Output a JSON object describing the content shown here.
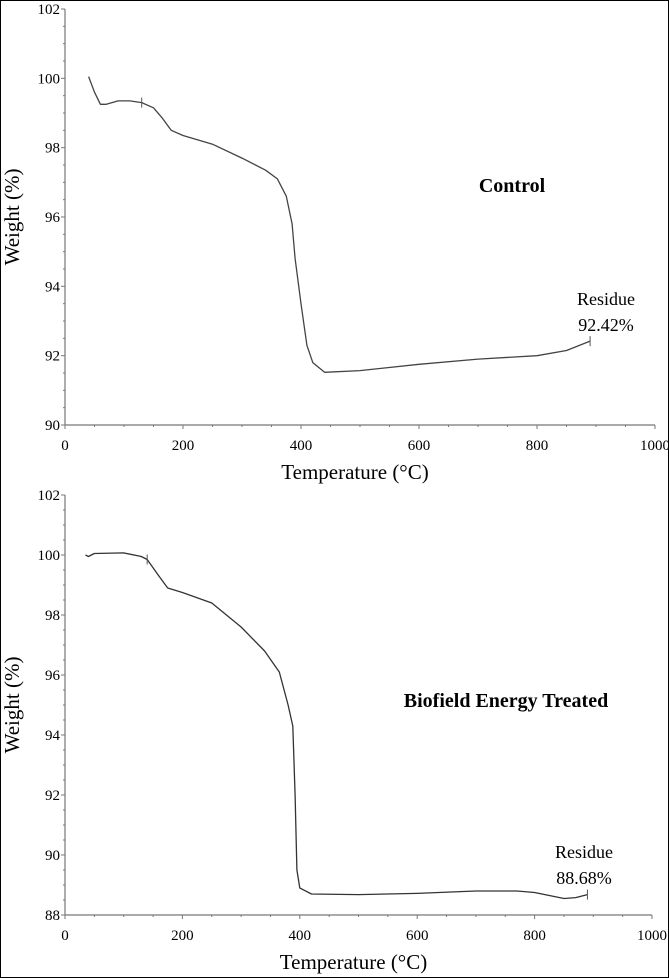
{
  "chart_data": [
    {
      "type": "line",
      "title": "Control",
      "xlabel": "Temperature (°C)",
      "ylabel": "Weight (%)",
      "xlim": [
        0,
        1000
      ],
      "ylim": [
        90,
        102
      ],
      "xticks": [
        0,
        200,
        400,
        600,
        800,
        1000
      ],
      "yticks": [
        90,
        92,
        94,
        96,
        98,
        100,
        102
      ],
      "grid": false,
      "line_color": "#444444",
      "annotation": {
        "line1": "Residue",
        "line2": "92.42%",
        "x": 890,
        "y": 92.42
      },
      "step_marker": {
        "x": 130,
        "y": 99.3
      },
      "x": [
        40,
        50,
        60,
        70,
        90,
        110,
        130,
        150,
        165,
        180,
        200,
        250,
        300,
        340,
        360,
        375,
        385,
        390,
        400,
        410,
        420,
        440,
        500,
        600,
        700,
        800,
        850,
        890
      ],
      "y": [
        100.05,
        99.6,
        99.25,
        99.25,
        99.35,
        99.35,
        99.3,
        99.15,
        98.85,
        98.5,
        98.35,
        98.1,
        97.7,
        97.35,
        97.1,
        96.6,
        95.8,
        94.8,
        93.5,
        92.3,
        91.8,
        91.52,
        91.57,
        91.75,
        91.9,
        92.0,
        92.15,
        92.42
      ]
    },
    {
      "type": "line",
      "title": "Biofield Energy Treated",
      "xlabel": "Temperature (°C)",
      "ylabel": "Weight (%)",
      "xlim": [
        0,
        1000
      ],
      "ylim": [
        88,
        102
      ],
      "xticks": [
        0,
        200,
        400,
        600,
        800,
        1000
      ],
      "yticks": [
        88,
        90,
        92,
        94,
        96,
        98,
        100,
        102
      ],
      "grid": false,
      "line_color": "#333333",
      "annotation": {
        "line1": "Residue",
        "line2": "88.68%",
        "x": 890,
        "y": 88.68
      },
      "step_marker": {
        "x": 140,
        "y": 99.85
      },
      "x": [
        35,
        40,
        50,
        100,
        130,
        140,
        160,
        175,
        200,
        250,
        300,
        340,
        365,
        380,
        388,
        392,
        395,
        400,
        420,
        500,
        600,
        700,
        770,
        800,
        850,
        870,
        890
      ],
      "y": [
        100.0,
        99.95,
        100.05,
        100.07,
        99.95,
        99.85,
        99.3,
        98.9,
        98.75,
        98.4,
        97.6,
        96.8,
        96.1,
        95.0,
        94.3,
        92.0,
        89.5,
        88.9,
        88.7,
        88.68,
        88.72,
        88.8,
        88.8,
        88.75,
        88.55,
        88.58,
        88.68
      ]
    }
  ]
}
